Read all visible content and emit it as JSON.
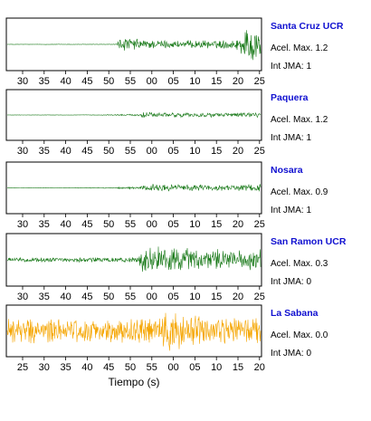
{
  "chart_data": {
    "type": "line",
    "xlabel": "Tiempo (s)",
    "panels": [
      {
        "station": "Santa Cruz UCR",
        "acel_max": "Acel. Max. 1.2",
        "int_jma": "Int JMA: 1",
        "color": "#1a7a1a",
        "x_ticks": [
          "30",
          "35",
          "40",
          "45",
          "50",
          "55",
          "00",
          "05",
          "10",
          "15",
          "20",
          "25"
        ],
        "onset_tick": 4.4,
        "envelope": [
          [
            0,
            0.008
          ],
          [
            4.35,
            0.012
          ],
          [
            4.5,
            0.32
          ],
          [
            5.0,
            0.28
          ],
          [
            6.0,
            0.2
          ],
          [
            7.0,
            0.17
          ],
          [
            8.0,
            0.18
          ],
          [
            9.0,
            0.17
          ],
          [
            10.0,
            0.25
          ],
          [
            10.3,
            0.6
          ],
          [
            10.5,
            0.95
          ],
          [
            10.8,
            0.8
          ],
          [
            11.2,
            0.5
          ],
          [
            12.0,
            0.32
          ],
          [
            13.0,
            0.22
          ],
          [
            14.0,
            0.15
          ]
        ]
      },
      {
        "station": "Paquera",
        "acel_max": "Acel. Max. 1.2",
        "int_jma": "Int JMA: 1",
        "color": "#1a7a1a",
        "x_ticks": [
          "30",
          "35",
          "40",
          "45",
          "50",
          "55",
          "00",
          "05",
          "10",
          "15",
          "20",
          "25"
        ],
        "onset_tick": 5.3,
        "envelope": [
          [
            0,
            0.006
          ],
          [
            3.5,
            0.01
          ],
          [
            5.3,
            0.04
          ],
          [
            5.6,
            0.14
          ],
          [
            6.5,
            0.12
          ],
          [
            8.0,
            0.1
          ],
          [
            10.0,
            0.1
          ],
          [
            12.0,
            0.12
          ],
          [
            13.0,
            0.22
          ],
          [
            13.5,
            0.5
          ],
          [
            13.8,
            0.9
          ],
          [
            14.0,
            0.8
          ]
        ]
      },
      {
        "station": "Nosara",
        "acel_max": "Acel. Max. 0.9",
        "int_jma": "Int JMA: 1",
        "color": "#1a7a1a",
        "x_ticks": [
          "30",
          "35",
          "40",
          "45",
          "50",
          "55",
          "00",
          "05",
          "10",
          "15",
          "20",
          "25"
        ],
        "onset_tick": 5.4,
        "envelope": [
          [
            0,
            0.01
          ],
          [
            4.0,
            0.02
          ],
          [
            5.4,
            0.06
          ],
          [
            6.0,
            0.18
          ],
          [
            7.0,
            0.16
          ],
          [
            8.0,
            0.15
          ],
          [
            9.0,
            0.12
          ],
          [
            10.0,
            0.14
          ],
          [
            11.0,
            0.22
          ],
          [
            12.0,
            0.4
          ],
          [
            12.3,
            0.65
          ],
          [
            12.6,
            0.5
          ],
          [
            13.0,
            0.38
          ],
          [
            14.0,
            0.22
          ]
        ]
      },
      {
        "station": "San Ramon UCR",
        "acel_max": "Acel. Max. 0.3",
        "int_jma": "Int JMA: 0",
        "color": "#1a7a1a",
        "x_ticks": [
          "30",
          "35",
          "40",
          "45",
          "50",
          "55",
          "00",
          "05",
          "10",
          "15",
          "20",
          "25"
        ],
        "onset_tick": 5.5,
        "envelope": [
          [
            0,
            0.1
          ],
          [
            5.4,
            0.12
          ],
          [
            5.55,
            0.7
          ],
          [
            6.0,
            0.6
          ],
          [
            7.0,
            0.55
          ],
          [
            8.0,
            0.5
          ],
          [
            9.0,
            0.45
          ],
          [
            10.0,
            0.42
          ],
          [
            11.0,
            0.45
          ],
          [
            12.0,
            0.5
          ],
          [
            13.0,
            0.52
          ],
          [
            13.6,
            0.7
          ],
          [
            14.0,
            0.6
          ]
        ]
      },
      {
        "station": "La Sabana",
        "acel_max": "Acel. Max. 0.0",
        "int_jma": "Int JMA: 0",
        "color": "#f5a500",
        "x_ticks": [
          "25",
          "30",
          "35",
          "40",
          "45",
          "50",
          "55",
          "00",
          "05",
          "10",
          "15",
          "20"
        ],
        "onset_tick": 6.6,
        "envelope": [
          [
            0,
            0.55
          ],
          [
            6.5,
            0.55
          ],
          [
            6.6,
            0.9
          ],
          [
            7.5,
            0.75
          ],
          [
            9.0,
            0.65
          ],
          [
            11.0,
            0.6
          ],
          [
            12.5,
            0.55
          ],
          [
            13.0,
            0.55
          ]
        ]
      }
    ]
  }
}
